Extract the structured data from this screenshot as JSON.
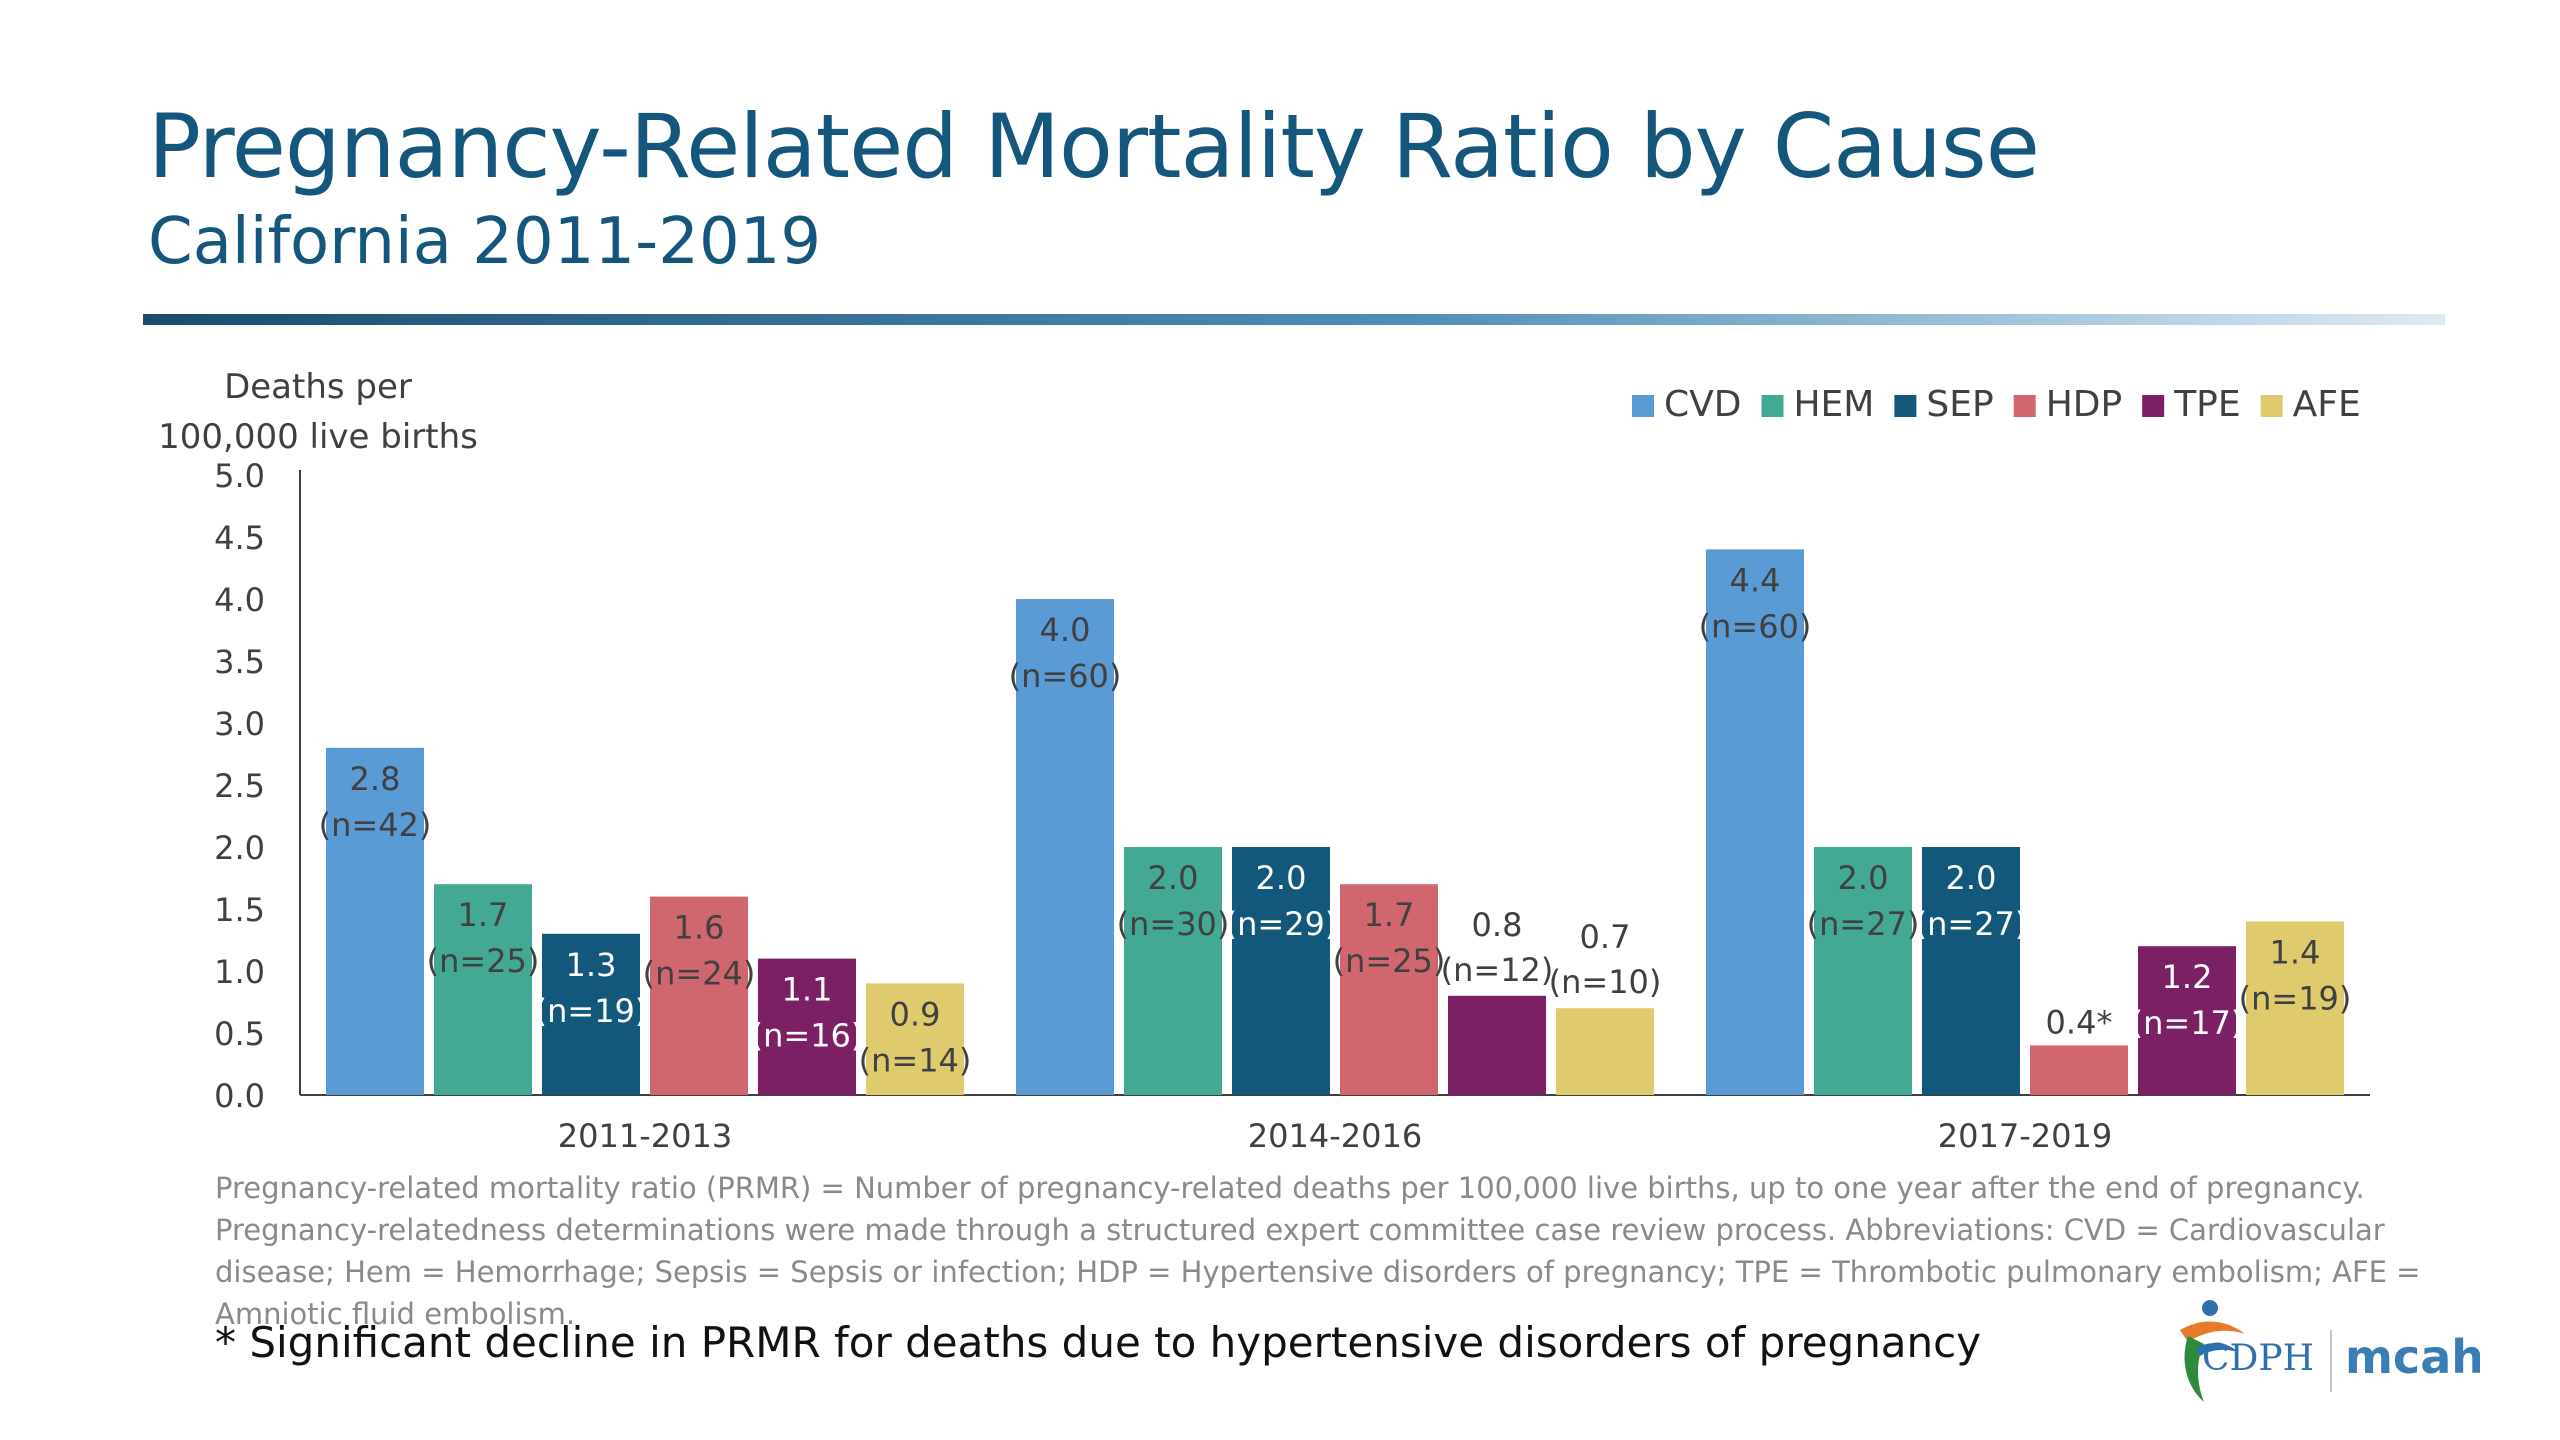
{
  "title": "Pregnancy-Related Mortality Ratio by Cause",
  "subtitle": "California 2011-2019",
  "caption": "Pregnancy-related mortality ratio (PRMR) = Number of pregnancy-related deaths per 100,000 live births, up to one year after the end of pregnancy. Pregnancy-relatedness determinations were made through a structured expert committee case review process. Abbreviations: CVD = Cardiovascular disease; Hem = Hemorrhage; Sepsis = Sepsis or infection; HDP = Hypertensive disorders of pregnancy; TPE = Thrombotic pulmonary embolism; AFE = Amniotic fluid embolism.",
  "footnote": "* Significant decline in PRMR for deaths due to hypertensive disorders of pregnancy",
  "logo": {
    "cdph_text": "CDPH",
    "mcah_text": "mcah"
  },
  "chart_data": {
    "type": "bar",
    "ylabel_lines": [
      "Deaths per",
      "100,000 live births"
    ],
    "ylim": [
      0,
      5
    ],
    "yticks": [
      "0.0",
      "0.5",
      "1.0",
      "1.5",
      "2.0",
      "2.5",
      "3.0",
      "3.5",
      "4.0",
      "4.5",
      "5.0"
    ],
    "categories": [
      "2011-2013",
      "2014-2016",
      "2017-2019"
    ],
    "legend_position": "top-right",
    "grid": false,
    "series": [
      {
        "name": "CVD",
        "color": "#5b9bd5",
        "values": [
          2.8,
          4.0,
          4.4
        ],
        "labels": [
          "2.8",
          "4.0",
          "4.4"
        ],
        "counts": [
          "(n=42)",
          "(n=60)",
          "(n=60)"
        ]
      },
      {
        "name": "HEM",
        "color": "#43a995",
        "values": [
          1.7,
          2.0,
          2.0
        ],
        "labels": [
          "1.7",
          "2.0",
          "2.0"
        ],
        "counts": [
          "(n=25)",
          "(n=30)",
          "(n=27)"
        ]
      },
      {
        "name": "SEP",
        "color": "#13577a",
        "values": [
          1.3,
          2.0,
          2.0
        ],
        "labels": [
          "1.3",
          "2.0",
          "2.0"
        ],
        "counts": [
          "(n=19)",
          "(n=29)",
          "(n=27)"
        ]
      },
      {
        "name": "HDP",
        "color": "#d0676f",
        "values": [
          1.6,
          1.7,
          0.4
        ],
        "labels": [
          "1.6",
          "1.7",
          "0.4*"
        ],
        "counts": [
          "(n=24)",
          "(n=25)",
          ""
        ]
      },
      {
        "name": "TPE",
        "color": "#7c2066",
        "values": [
          1.1,
          0.8,
          1.2
        ],
        "labels": [
          "1.1",
          "0.8",
          "1.2"
        ],
        "counts": [
          "(n=16)",
          "(n=12)",
          "(n=17)"
        ]
      },
      {
        "name": "AFE",
        "color": "#dfcb6d",
        "values": [
          0.9,
          0.7,
          1.4
        ],
        "labels": [
          "0.9",
          "0.7",
          "1.4"
        ],
        "counts": [
          "(n=14)",
          "(n=10)",
          "(n=19)"
        ]
      }
    ]
  }
}
